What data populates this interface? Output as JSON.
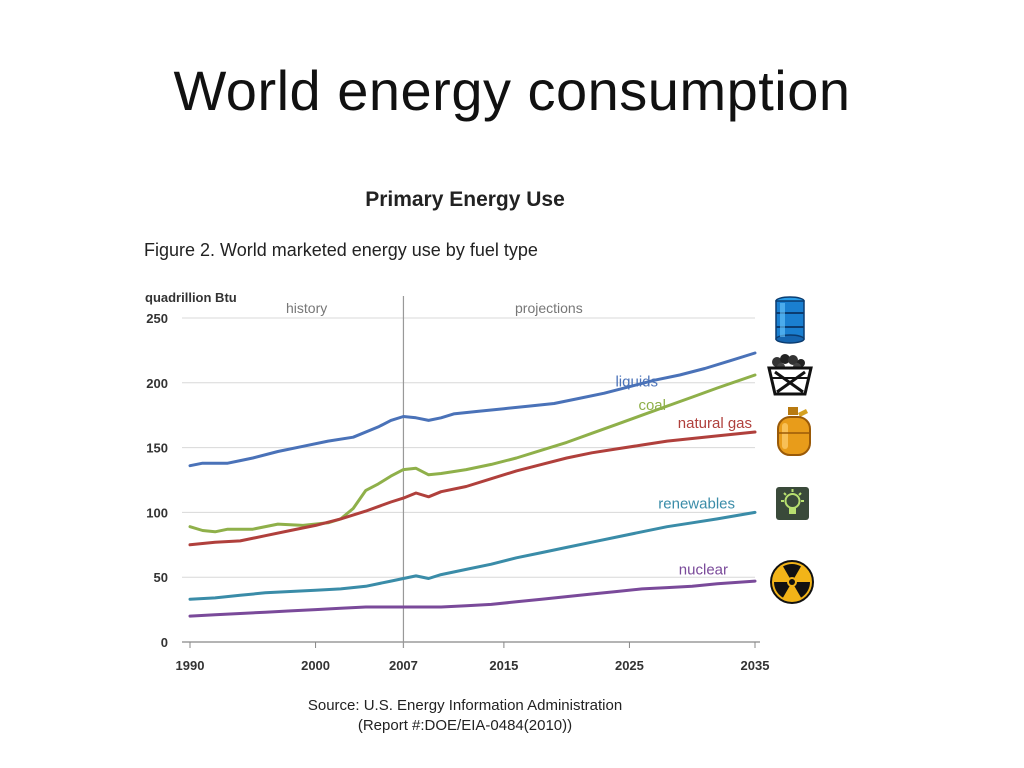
{
  "slide": {
    "title": "World energy consumption"
  },
  "chart_data": {
    "type": "line",
    "title": "Primary Energy Use",
    "caption": "Figure 2. World marketed energy use by fuel type",
    "ylabel": "quadrillion Btu",
    "xlabel": "",
    "ylim": [
      0,
      250
    ],
    "xlim": [
      1990,
      2035
    ],
    "y_ticks": [
      0,
      50,
      100,
      150,
      200,
      250
    ],
    "x_ticks": [
      1990,
      2000,
      2007,
      2015,
      2025,
      2035
    ],
    "divider_year": 2007,
    "annotations": {
      "history": "history",
      "projections": "projections"
    },
    "grid": "horizontal",
    "series": [
      {
        "name": "liquids",
        "color": "#4a72b8",
        "icon": "oil-barrel-icon",
        "points": [
          [
            1990,
            136
          ],
          [
            1991,
            138
          ],
          [
            1993,
            138
          ],
          [
            1994,
            140
          ],
          [
            1995,
            142
          ],
          [
            1997,
            147
          ],
          [
            1999,
            151
          ],
          [
            2001,
            155
          ],
          [
            2003,
            158
          ],
          [
            2005,
            166
          ],
          [
            2006,
            171
          ],
          [
            2007,
            174
          ],
          [
            2008,
            173
          ],
          [
            2009,
            171
          ],
          [
            2010,
            173
          ],
          [
            2011,
            176
          ],
          [
            2013,
            178
          ],
          [
            2015,
            180
          ],
          [
            2017,
            182
          ],
          [
            2019,
            184
          ],
          [
            2021,
            188
          ],
          [
            2023,
            192
          ],
          [
            2025,
            197
          ],
          [
            2027,
            202
          ],
          [
            2029,
            206
          ],
          [
            2031,
            211
          ],
          [
            2033,
            217
          ],
          [
            2035,
            223
          ]
        ]
      },
      {
        "name": "coal",
        "color": "#8fb04a",
        "icon": "coal-cart-icon",
        "points": [
          [
            1990,
            89
          ],
          [
            1991,
            86
          ],
          [
            1992,
            85
          ],
          [
            1993,
            87
          ],
          [
            1995,
            87
          ],
          [
            1997,
            91
          ],
          [
            1999,
            90
          ],
          [
            2001,
            92
          ],
          [
            2002,
            95
          ],
          [
            2003,
            103
          ],
          [
            2004,
            117
          ],
          [
            2005,
            122
          ],
          [
            2006,
            128
          ],
          [
            2007,
            133
          ],
          [
            2008,
            134
          ],
          [
            2009,
            129
          ],
          [
            2010,
            130
          ],
          [
            2012,
            133
          ],
          [
            2014,
            137
          ],
          [
            2016,
            142
          ],
          [
            2018,
            148
          ],
          [
            2020,
            154
          ],
          [
            2022,
            161
          ],
          [
            2024,
            168
          ],
          [
            2026,
            175
          ],
          [
            2028,
            182
          ],
          [
            2030,
            189
          ],
          [
            2032,
            196
          ],
          [
            2035,
            206
          ]
        ]
      },
      {
        "name": "natural gas",
        "color": "#b0403c",
        "icon": "gas-canister-icon",
        "points": [
          [
            1990,
            75
          ],
          [
            1992,
            77
          ],
          [
            1994,
            78
          ],
          [
            1996,
            82
          ],
          [
            1998,
            86
          ],
          [
            2000,
            90
          ],
          [
            2002,
            95
          ],
          [
            2004,
            101
          ],
          [
            2006,
            108
          ],
          [
            2007,
            111
          ],
          [
            2008,
            115
          ],
          [
            2009,
            112
          ],
          [
            2010,
            116
          ],
          [
            2012,
            120
          ],
          [
            2014,
            126
          ],
          [
            2016,
            132
          ],
          [
            2018,
            137
          ],
          [
            2020,
            142
          ],
          [
            2022,
            146
          ],
          [
            2024,
            149
          ],
          [
            2026,
            152
          ],
          [
            2028,
            155
          ],
          [
            2030,
            157
          ],
          [
            2032,
            159
          ],
          [
            2035,
            162
          ]
        ]
      },
      {
        "name": "renewables",
        "color": "#3a8ca8",
        "icon": "light-bulb-icon",
        "points": [
          [
            1990,
            33
          ],
          [
            1992,
            34
          ],
          [
            1994,
            36
          ],
          [
            1996,
            38
          ],
          [
            1998,
            39
          ],
          [
            2000,
            40
          ],
          [
            2002,
            41
          ],
          [
            2004,
            43
          ],
          [
            2006,
            47
          ],
          [
            2007,
            49
          ],
          [
            2008,
            51
          ],
          [
            2009,
            49
          ],
          [
            2010,
            52
          ],
          [
            2012,
            56
          ],
          [
            2014,
            60
          ],
          [
            2016,
            65
          ],
          [
            2018,
            69
          ],
          [
            2020,
            73
          ],
          [
            2022,
            77
          ],
          [
            2024,
            81
          ],
          [
            2026,
            85
          ],
          [
            2028,
            89
          ],
          [
            2030,
            92
          ],
          [
            2032,
            95
          ],
          [
            2035,
            100
          ]
        ]
      },
      {
        "name": "nuclear",
        "color": "#7a4a9a",
        "icon": "radiation-icon",
        "points": [
          [
            1990,
            20
          ],
          [
            1992,
            21
          ],
          [
            1994,
            22
          ],
          [
            1996,
            23
          ],
          [
            1998,
            24
          ],
          [
            2000,
            25
          ],
          [
            2002,
            26
          ],
          [
            2004,
            27
          ],
          [
            2006,
            27
          ],
          [
            2007,
            27
          ],
          [
            2008,
            27
          ],
          [
            2010,
            27
          ],
          [
            2012,
            28
          ],
          [
            2014,
            29
          ],
          [
            2016,
            31
          ],
          [
            2018,
            33
          ],
          [
            2020,
            35
          ],
          [
            2022,
            37
          ],
          [
            2024,
            39
          ],
          [
            2026,
            41
          ],
          [
            2028,
            42
          ],
          [
            2030,
            43
          ],
          [
            2032,
            45
          ],
          [
            2035,
            47
          ]
        ]
      }
    ]
  },
  "source": {
    "line1": "Source: U.S. Energy Information Administration",
    "line2": "(Report #:DOE/EIA-0484(2010))"
  }
}
